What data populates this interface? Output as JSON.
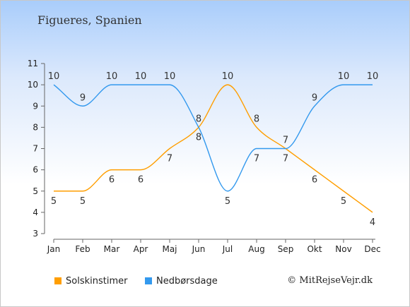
{
  "title": "Figueres, Spanien",
  "copyright": "© MitRejseVejr.dk",
  "chart_data": {
    "type": "line",
    "title": "Figueres, Spanien",
    "xlabel": "",
    "ylabel": "",
    "categories": [
      "Jan",
      "Feb",
      "Mar",
      "Apr",
      "Maj",
      "Jun",
      "Jul",
      "Aug",
      "Sep",
      "Okt",
      "Nov",
      "Dec"
    ],
    "ylim": [
      3,
      11
    ],
    "yticks": [
      3,
      4,
      5,
      6,
      7,
      8,
      9,
      10,
      11
    ],
    "grid": false,
    "legend_position": "bottom-left",
    "series": [
      {
        "name": "Solskinstimer",
        "color": "#ff9e00",
        "values": [
          5,
          5,
          6,
          6,
          7,
          8,
          10,
          8,
          7,
          6,
          5,
          4
        ]
      },
      {
        "name": "Nedbørsdage",
        "color": "#3399ee",
        "values": [
          10,
          9,
          10,
          10,
          10,
          8,
          5,
          7,
          7,
          9,
          10,
          10
        ]
      }
    ]
  }
}
